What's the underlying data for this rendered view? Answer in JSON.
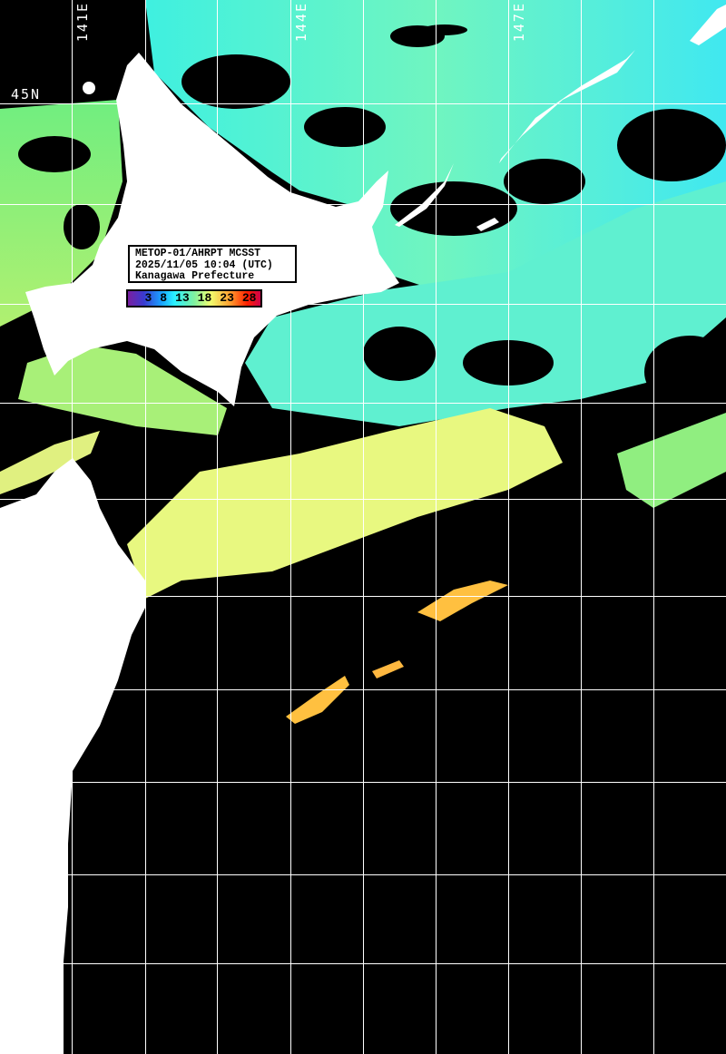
{
  "info": {
    "line1": "METOP-01/AHRPT MCSST",
    "line2": "2025/11/05 10:04 (UTC)",
    "line3": "Kanagawa Prefecture"
  },
  "colorbar": {
    "ticks": [
      "3",
      "8",
      "13",
      "18",
      "23",
      "28"
    ],
    "colors": [
      "#7a1fa0",
      "#1aa0ff",
      "#28f0ff",
      "#7ff0a0",
      "#f0ff70",
      "#ffa030",
      "#ff2000",
      "#d0004a"
    ]
  },
  "grid_labels": {
    "lon": [
      "141E",
      "144E",
      "147E"
    ],
    "lat": [
      "45N"
    ]
  },
  "colors": {
    "land": "#ffffff",
    "cloud": "#000000",
    "grid": "#ffffff"
  }
}
